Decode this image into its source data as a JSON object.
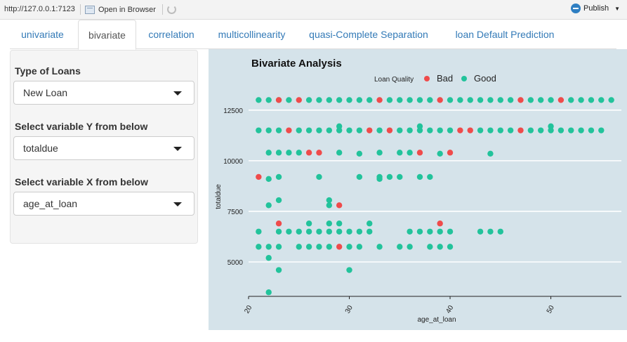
{
  "topbar": {
    "url": "http://127.0.0.1:7123",
    "open_browser": "Open in Browser",
    "publish": "Publish"
  },
  "tabs": [
    {
      "label": "univariate",
      "active": false
    },
    {
      "label": "bivariate",
      "active": true
    },
    {
      "label": "correlation",
      "active": false
    },
    {
      "label": "multicollinearity",
      "active": false
    },
    {
      "label": "quasi-Complete Separation",
      "active": false
    },
    {
      "label": "loan Default Prediction",
      "active": false
    }
  ],
  "sidebar": {
    "loan_type_label": "Type of Loans",
    "loan_type_value": "New Loan",
    "y_label": "Select variable Y from below",
    "y_value": "totaldue",
    "x_label": "Select variable X from below",
    "x_value": "age_at_loan"
  },
  "chart_data": {
    "type": "scatter",
    "title": "Bivariate Analysis",
    "xlabel": "age_at_loan",
    "ylabel": "totaldue",
    "xlim": [
      20,
      57
    ],
    "ylim": [
      3300,
      13500
    ],
    "x_ticks": [
      "20",
      "30",
      "40",
      "50"
    ],
    "y_ticks": [
      "5000",
      "7500",
      "10000",
      "12500"
    ],
    "legend": {
      "title": "Loan Quality",
      "position": "top",
      "entries": [
        {
          "name": "Bad",
          "color": "#ef4b4b"
        },
        {
          "name": "Good",
          "color": "#22c39b"
        }
      ]
    },
    "grid": true,
    "series": [
      {
        "name": "Good",
        "color": "#22c39b",
        "points": [
          [
            21,
            13000
          ],
          [
            22,
            13000
          ],
          [
            23,
            13000
          ],
          [
            24,
            13000
          ],
          [
            26,
            13000
          ],
          [
            27,
            13000
          ],
          [
            28,
            13000
          ],
          [
            29,
            13000
          ],
          [
            30,
            13000
          ],
          [
            31,
            13000
          ],
          [
            32,
            13000
          ],
          [
            34,
            13000
          ],
          [
            35,
            13000
          ],
          [
            36,
            13000
          ],
          [
            37,
            13000
          ],
          [
            38,
            13000
          ],
          [
            40,
            13000
          ],
          [
            41,
            13000
          ],
          [
            42,
            13000
          ],
          [
            43,
            13000
          ],
          [
            44,
            13000
          ],
          [
            45,
            13000
          ],
          [
            46,
            13000
          ],
          [
            48,
            13000
          ],
          [
            49,
            13000
          ],
          [
            50,
            13000
          ],
          [
            52,
            13000
          ],
          [
            53,
            13000
          ],
          [
            54,
            13000
          ],
          [
            55,
            13000
          ],
          [
            56,
            13000
          ],
          [
            21,
            11500
          ],
          [
            22,
            11500
          ],
          [
            23,
            11500
          ],
          [
            25,
            11500
          ],
          [
            26,
            11500
          ],
          [
            27,
            11500
          ],
          [
            28,
            11500
          ],
          [
            29,
            11500
          ],
          [
            29,
            11700
          ],
          [
            30,
            11500
          ],
          [
            31,
            11500
          ],
          [
            33,
            11500
          ],
          [
            35,
            11500
          ],
          [
            36,
            11500
          ],
          [
            37,
            11500
          ],
          [
            37,
            11700
          ],
          [
            38,
            11500
          ],
          [
            39,
            11500
          ],
          [
            40,
            11500
          ],
          [
            43,
            11500
          ],
          [
            44,
            11500
          ],
          [
            45,
            11500
          ],
          [
            46,
            11500
          ],
          [
            48,
            11500
          ],
          [
            49,
            11500
          ],
          [
            50,
            11500
          ],
          [
            50,
            11700
          ],
          [
            51,
            11500
          ],
          [
            52,
            11500
          ],
          [
            53,
            11500
          ],
          [
            54,
            11500
          ],
          [
            55,
            11500
          ],
          [
            22,
            10400
          ],
          [
            23,
            10400
          ],
          [
            24,
            10400
          ],
          [
            25,
            10400
          ],
          [
            29,
            10400
          ],
          [
            31,
            10350
          ],
          [
            33,
            10400
          ],
          [
            35,
            10400
          ],
          [
            36,
            10400
          ],
          [
            39,
            10350
          ],
          [
            44,
            10350
          ],
          [
            22,
            9100
          ],
          [
            23,
            9200
          ],
          [
            27,
            9200
          ],
          [
            31,
            9200
          ],
          [
            33,
            9100
          ],
          [
            33,
            9200
          ],
          [
            34,
            9200
          ],
          [
            35,
            9200
          ],
          [
            37,
            9200
          ],
          [
            38,
            9200
          ],
          [
            22,
            7800
          ],
          [
            23,
            8050
          ],
          [
            28,
            8050
          ],
          [
            28,
            7800
          ],
          [
            21,
            6500
          ],
          [
            23,
            6500
          ],
          [
            24,
            6500
          ],
          [
            25,
            6500
          ],
          [
            26,
            6500
          ],
          [
            26,
            6900
          ],
          [
            27,
            6500
          ],
          [
            28,
            6500
          ],
          [
            28,
            6900
          ],
          [
            29,
            6500
          ],
          [
            29,
            6900
          ],
          [
            30,
            6500
          ],
          [
            31,
            6500
          ],
          [
            32,
            6500
          ],
          [
            32,
            6900
          ],
          [
            36,
            6500
          ],
          [
            37,
            6500
          ],
          [
            38,
            6500
          ],
          [
            39,
            6500
          ],
          [
            40,
            6500
          ],
          [
            43,
            6500
          ],
          [
            44,
            6500
          ],
          [
            45,
            6500
          ],
          [
            21,
            5750
          ],
          [
            22,
            5750
          ],
          [
            23,
            5750
          ],
          [
            25,
            5750
          ],
          [
            26,
            5750
          ],
          [
            27,
            5750
          ],
          [
            28,
            5750
          ],
          [
            30,
            5750
          ],
          [
            31,
            5750
          ],
          [
            33,
            5750
          ],
          [
            35,
            5750
          ],
          [
            36,
            5750
          ],
          [
            38,
            5750
          ],
          [
            39,
            5750
          ],
          [
            40,
            5750
          ],
          [
            22,
            5200
          ],
          [
            23,
            4600
          ],
          [
            30,
            4600
          ],
          [
            22,
            3500
          ]
        ]
      },
      {
        "name": "Bad",
        "color": "#ef4b4b",
        "points": [
          [
            23,
            13000
          ],
          [
            25,
            13000
          ],
          [
            33,
            13000
          ],
          [
            39,
            13000
          ],
          [
            47,
            13000
          ],
          [
            51,
            13000
          ],
          [
            24,
            11500
          ],
          [
            32,
            11500
          ],
          [
            34,
            11500
          ],
          [
            41,
            11500
          ],
          [
            42,
            11500
          ],
          [
            47,
            11500
          ],
          [
            26,
            10400
          ],
          [
            27,
            10400
          ],
          [
            37,
            10400
          ],
          [
            40,
            10400
          ],
          [
            21,
            9200
          ],
          [
            29,
            7800
          ],
          [
            23,
            6900
          ],
          [
            39,
            6900
          ],
          [
            29,
            5750
          ]
        ]
      }
    ]
  }
}
